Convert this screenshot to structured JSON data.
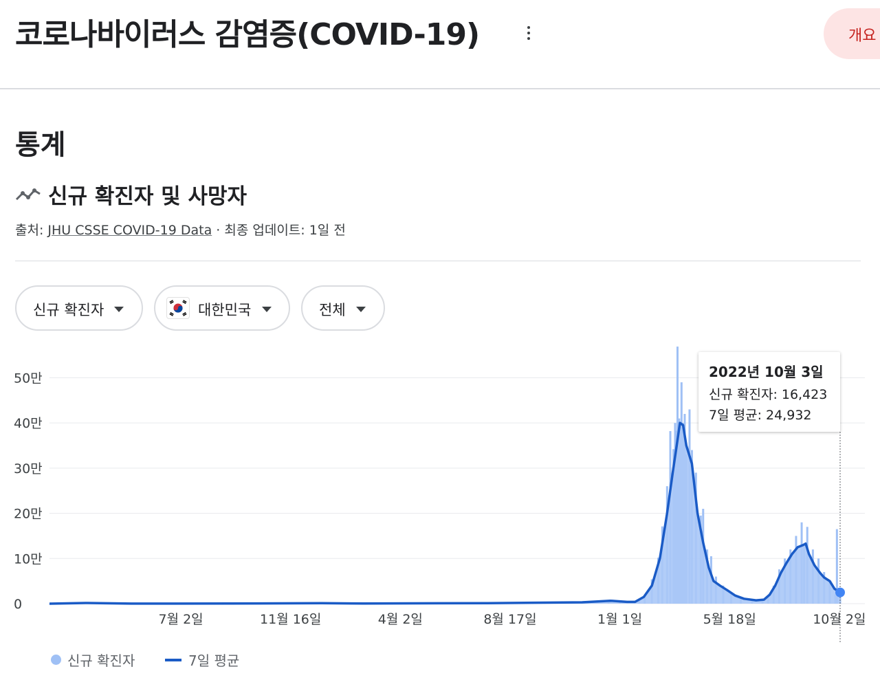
{
  "header": {
    "title": "코로나바이러스 감염증(COVID-19)",
    "overview_tab": "개요",
    "more_icon": "more-vert-icon"
  },
  "section": {
    "title": "통계",
    "subtitle": "신규 확진자 및 사망자",
    "trend_icon": "trending-line-icon",
    "source_prefix": "출처: ",
    "source_link": "JHU CSSE COVID-19 Data",
    "updated": " · 최종 업데이트: 1일 전"
  },
  "filters": {
    "metric": "신규 확진자",
    "country": "대한민국",
    "country_icon": "korea-flag-icon",
    "range": "전체",
    "dropdown_icon": "arrow-drop-down-icon"
  },
  "tooltip": {
    "date": "2022년 10월 3일",
    "cases_line": "신규 확진자: 16,423",
    "avg_line": "7일 평균: 24,932"
  },
  "legend": {
    "cases": "신규 확진자",
    "avg": "7일 평균"
  },
  "colors": {
    "bars": "#9fc0f5",
    "bars_fill": "#aac8f7",
    "line": "#1a5bc6",
    "grid": "#e8eaed",
    "accent_tab_bg": "#fde4e4",
    "accent_tab_text": "#c5221f"
  },
  "chart_data": {
    "type": "bar",
    "overlay_line": "7일 평균",
    "y_ticks": [
      {
        "value": 0,
        "label": "0"
      },
      {
        "value": 100000,
        "label": "10만"
      },
      {
        "value": 200000,
        "label": "20만"
      },
      {
        "value": 300000,
        "label": "30만"
      },
      {
        "value": 400000,
        "label": "40만"
      },
      {
        "value": 500000,
        "label": "50만"
      }
    ],
    "ylim": [
      0,
      560000
    ],
    "xlim": [
      "2020-01-20",
      "2022-10-03"
    ],
    "x_ticks": [
      {
        "date": "2020-07-02",
        "label": "7월 2일"
      },
      {
        "date": "2020-11-16",
        "label": "11월 16일"
      },
      {
        "date": "2021-04-02",
        "label": "4월 2일"
      },
      {
        "date": "2021-08-17",
        "label": "8월 17일"
      },
      {
        "date": "2022-01-01",
        "label": "1월 1일"
      },
      {
        "date": "2022-05-18",
        "label": "5월 18일"
      },
      {
        "date": "2022-10-02",
        "label": "10월 2일"
      }
    ],
    "grid": true,
    "legend_position": "bottom-left",
    "highlight": {
      "date": "2022-10-03",
      "cases": 16423,
      "avg": 24932
    },
    "series": [
      {
        "name": "신규 확진자",
        "kind": "bar",
        "points": [
          [
            "2020-01-20",
            0
          ],
          [
            "2020-03-01",
            600
          ],
          [
            "2020-06-01",
            400
          ],
          [
            "2020-09-01",
            300
          ],
          [
            "2020-12-25",
            1100
          ],
          [
            "2021-03-01",
            400
          ],
          [
            "2021-07-25",
            1800
          ],
          [
            "2021-11-01",
            2500
          ],
          [
            "2021-12-18",
            7500
          ],
          [
            "2022-01-01",
            4000
          ],
          [
            "2022-01-25",
            8000
          ],
          [
            "2022-02-01",
            18000
          ],
          [
            "2022-02-10",
            54000
          ],
          [
            "2022-02-18",
            102000
          ],
          [
            "2022-02-23",
            171000
          ],
          [
            "2022-03-01",
            260000
          ],
          [
            "2022-03-05",
            382000
          ],
          [
            "2022-03-09",
            342000
          ],
          [
            "2022-03-11",
            400000
          ],
          [
            "2022-03-12",
            383000
          ],
          [
            "2022-03-14",
            569000
          ],
          [
            "2022-03-16",
            410000
          ],
          [
            "2022-03-17",
            395000
          ],
          [
            "2022-03-19",
            490000
          ],
          [
            "2022-03-21",
            400000
          ],
          [
            "2022-03-23",
            420000
          ],
          [
            "2022-03-25",
            330000
          ],
          [
            "2022-03-29",
            430000
          ],
          [
            "2022-04-01",
            340000
          ],
          [
            "2022-04-06",
            290000
          ],
          [
            "2022-04-12",
            195000
          ],
          [
            "2022-04-15",
            210000
          ],
          [
            "2022-04-20",
            120000
          ],
          [
            "2022-04-25",
            105000
          ],
          [
            "2022-05-01",
            60000
          ],
          [
            "2022-05-10",
            40000
          ],
          [
            "2022-05-20",
            25000
          ],
          [
            "2022-06-01",
            15000
          ],
          [
            "2022-06-15",
            10000
          ],
          [
            "2022-06-28",
            7000
          ],
          [
            "2022-07-05",
            18000
          ],
          [
            "2022-07-12",
            40000
          ],
          [
            "2022-07-19",
            76000
          ],
          [
            "2022-07-26",
            100000
          ],
          [
            "2022-08-02",
            120000
          ],
          [
            "2022-08-09",
            150000
          ],
          [
            "2022-08-16",
            180000
          ],
          [
            "2022-08-19",
            130000
          ],
          [
            "2022-08-23",
            170000
          ],
          [
            "2022-08-30",
            120000
          ],
          [
            "2022-09-06",
            100000
          ],
          [
            "2022-09-13",
            70000
          ],
          [
            "2022-09-20",
            50000
          ],
          [
            "2022-09-27",
            20000
          ],
          [
            "2022-09-29",
            165000
          ],
          [
            "2022-10-03",
            16423
          ]
        ]
      },
      {
        "name": "7일 평균",
        "kind": "line",
        "points": [
          [
            "2020-01-20",
            0
          ],
          [
            "2020-03-05",
            1500
          ],
          [
            "2020-05-01",
            200
          ],
          [
            "2020-09-01",
            300
          ],
          [
            "2020-12-25",
            1050
          ],
          [
            "2021-02-15",
            400
          ],
          [
            "2021-07-20",
            1200
          ],
          [
            "2021-11-15",
            3000
          ],
          [
            "2021-12-20",
            6500
          ],
          [
            "2022-01-10",
            4000
          ],
          [
            "2022-01-20",
            4000
          ],
          [
            "2022-01-31",
            15000
          ],
          [
            "2022-02-10",
            40000
          ],
          [
            "2022-02-20",
            100000
          ],
          [
            "2022-03-01",
            200000
          ],
          [
            "2022-03-08",
            290000
          ],
          [
            "2022-03-13",
            350000
          ],
          [
            "2022-03-17",
            400000
          ],
          [
            "2022-03-21",
            395000
          ],
          [
            "2022-03-25",
            350000
          ],
          [
            "2022-04-01",
            310000
          ],
          [
            "2022-04-08",
            200000
          ],
          [
            "2022-04-15",
            135000
          ],
          [
            "2022-04-22",
            80000
          ],
          [
            "2022-04-28",
            50000
          ],
          [
            "2022-05-06",
            40000
          ],
          [
            "2022-05-15",
            30000
          ],
          [
            "2022-05-25",
            18000
          ],
          [
            "2022-06-05",
            11000
          ],
          [
            "2022-06-20",
            7500
          ],
          [
            "2022-06-30",
            9000
          ],
          [
            "2022-07-07",
            20000
          ],
          [
            "2022-07-14",
            40000
          ],
          [
            "2022-07-21",
            68000
          ],
          [
            "2022-07-28",
            90000
          ],
          [
            "2022-08-04",
            110000
          ],
          [
            "2022-08-11",
            125000
          ],
          [
            "2022-08-18",
            130000
          ],
          [
            "2022-08-21",
            133000
          ],
          [
            "2022-08-25",
            110000
          ],
          [
            "2022-09-01",
            85000
          ],
          [
            "2022-09-08",
            68000
          ],
          [
            "2022-09-13",
            58000
          ],
          [
            "2022-09-20",
            50000
          ],
          [
            "2022-09-26",
            33000
          ],
          [
            "2022-10-03",
            24932
          ]
        ]
      }
    ]
  }
}
